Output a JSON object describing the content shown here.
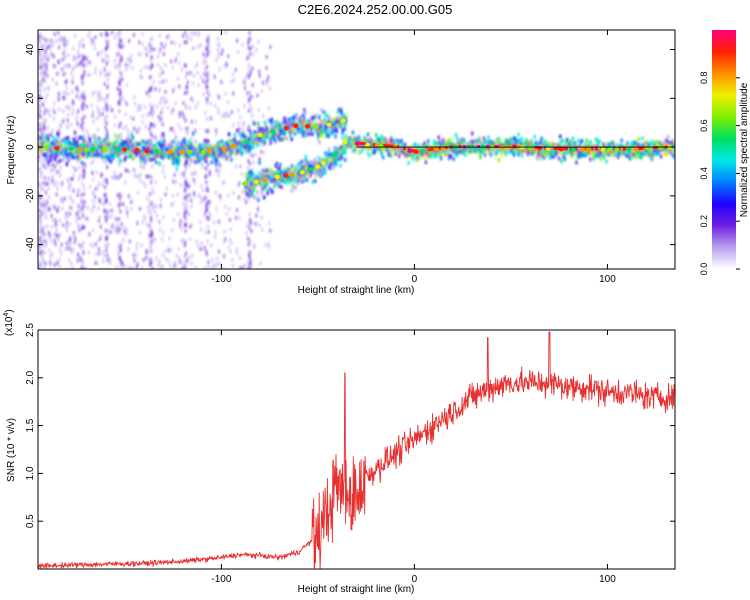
{
  "title": "C2E6.2024.252.00.00.G05",
  "chart_data": [
    {
      "type": "heatmap",
      "xlabel": "Height of straight line (km)",
      "ylabel": "Frequency (Hz)",
      "xlim": [
        -195,
        135
      ],
      "ylim": [
        -50,
        48
      ],
      "x_ticks": [
        -100,
        0,
        100
      ],
      "y_ticks": [
        -40,
        -20,
        0,
        20,
        40
      ],
      "colorbar": {
        "label": "Normalized spectral amplitude",
        "range": [
          0,
          1
        ],
        "ticks": [
          0.0,
          0.2,
          0.4,
          0.6,
          0.8
        ],
        "colors": [
          "#ffffff",
          "#b9a0f0",
          "#7020e0",
          "#2000ff",
          "#0080ff",
          "#00e8e8",
          "#00e060",
          "#80f000",
          "#f0f000",
          "#ff9000",
          "#ff2000",
          "#ff0080"
        ]
      },
      "ridges": [
        {
          "name": "",
          "x": [
            -195,
            -170,
            -150,
            -130,
            -110,
            -100,
            -90,
            -80,
            -70,
            -60,
            -50,
            -40,
            -36
          ],
          "y": [
            0,
            -1,
            -1,
            -2,
            -2,
            -1,
            1,
            5,
            7,
            9,
            8,
            10,
            11
          ]
        },
        {
          "name": "",
          "x": [
            -88,
            -80,
            -70,
            -60,
            -50,
            -42,
            -36
          ],
          "y": [
            -15,
            -14,
            -12,
            -11,
            -8,
            -4,
            0
          ]
        },
        {
          "name": "",
          "x": [
            -36,
            -25,
            -10,
            0,
            20,
            50,
            80,
            110,
            135
          ],
          "y": [
            2,
            1,
            0,
            -2,
            0,
            0,
            -1,
            -1,
            0
          ]
        }
      ]
    },
    {
      "type": "line",
      "xlabel": "Height of straight line (km)",
      "ylabel": "SNR (10 * v/v)",
      "y_multiplier": "(x10",
      "y_exponent": "4",
      "xlim": [
        -195,
        135
      ],
      "ylim": [
        0,
        2.5
      ],
      "x_ticks": [
        -100,
        0,
        100
      ],
      "y_ticks": [
        0.5,
        1.0,
        1.5,
        2.0,
        2.5
      ],
      "color": "#e83030",
      "series": [
        {
          "x": [
            -195,
            -180,
            -160,
            -140,
            -120,
            -100,
            -90,
            -80,
            -70,
            -60,
            -50,
            -45,
            -40,
            -35,
            -30,
            -25,
            -20,
            -10,
            0,
            10,
            20,
            30,
            40,
            50,
            60,
            70,
            80,
            90,
            100,
            110,
            120,
            135
          ],
          "y": [
            0.03,
            0.04,
            0.05,
            0.06,
            0.08,
            0.12,
            0.15,
            0.14,
            0.12,
            0.18,
            0.35,
            0.6,
            0.9,
            0.7,
            0.8,
            0.95,
            1.05,
            1.2,
            1.35,
            1.5,
            1.65,
            1.8,
            1.9,
            1.95,
            1.95,
            1.95,
            1.9,
            1.9,
            1.85,
            1.85,
            1.8,
            1.8
          ]
        }
      ],
      "spikes": [
        {
          "x": -36,
          "y": 2.05
        },
        {
          "x": 70,
          "y": 2.48
        },
        {
          "x": 38,
          "y": 2.42
        }
      ]
    }
  ]
}
